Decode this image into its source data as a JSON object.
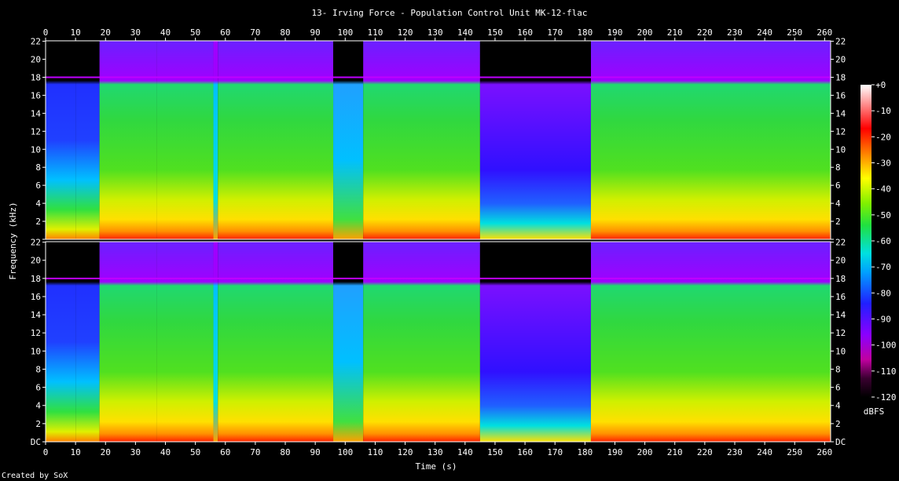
{
  "chart_data": {
    "type": "heatmap",
    "title": "13- Irving Force - Population Control Unit MK-12-flac",
    "xlabel": "Time (s)",
    "ylabel": "Frequency (kHz)",
    "xlim": [
      0,
      262
    ],
    "ylim": [
      0,
      22.05
    ],
    "x_ticks": [
      0,
      10,
      20,
      30,
      40,
      50,
      60,
      70,
      80,
      90,
      100,
      110,
      120,
      130,
      140,
      150,
      160,
      170,
      180,
      190,
      200,
      210,
      220,
      230,
      240,
      250,
      260
    ],
    "y_ticks": [
      {
        "v": 0,
        "label": "DC"
      },
      {
        "v": 2,
        "label": "2"
      },
      {
        "v": 4,
        "label": "4"
      },
      {
        "v": 6,
        "label": "6"
      },
      {
        "v": 8,
        "label": "8"
      },
      {
        "v": 10,
        "label": "10"
      },
      {
        "v": 12,
        "label": "12"
      },
      {
        "v": 14,
        "label": "14"
      },
      {
        "v": 16,
        "label": "16"
      },
      {
        "v": 18,
        "label": "18"
      },
      {
        "v": 20,
        "label": "20"
      },
      {
        "v": 22,
        "label": "22"
      }
    ],
    "channels": 2,
    "colorbar": {
      "label": "dBFS",
      "ticks": [
        "+0",
        "-10",
        "-20",
        "-30",
        "-40",
        "-50",
        "-60",
        "-70",
        "-80",
        "-90",
        "-100",
        "-110",
        "-120"
      ],
      "range": [
        -120,
        0
      ]
    },
    "lowpass_cutoff_khz": 18,
    "segments": [
      {
        "t0": 0,
        "t1": 10,
        "level": "quiet-intro"
      },
      {
        "t0": 10,
        "t1": 18,
        "level": "quiet-intro"
      },
      {
        "t0": 18,
        "t1": 37,
        "level": "full"
      },
      {
        "t0": 37,
        "t1": 56,
        "level": "full"
      },
      {
        "t0": 56,
        "t1": 57.5,
        "level": "dip"
      },
      {
        "t0": 57.5,
        "t1": 96,
        "level": "full"
      },
      {
        "t0": 96,
        "t1": 106,
        "level": "break"
      },
      {
        "t0": 106,
        "t1": 145,
        "level": "full"
      },
      {
        "t0": 145,
        "t1": 182,
        "level": "fade"
      },
      {
        "t0": 182,
        "t1": 262,
        "level": "full"
      }
    ]
  },
  "colors": {
    "background": "#000000",
    "axis": "#ffffff"
  },
  "footer": {
    "credit": "Created by SoX"
  }
}
